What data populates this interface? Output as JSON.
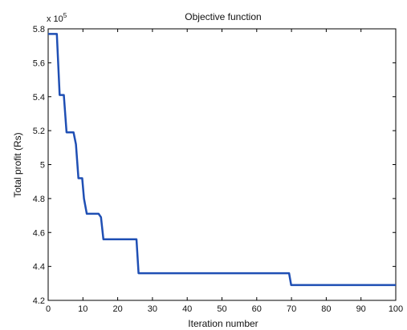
{
  "chart_data": {
    "type": "line",
    "title": "Objective function",
    "xlabel": "Iteration number",
    "ylabel": "Total profit (Rs)",
    "y_multiplier_base": "x 10",
    "y_multiplier_exp": "5",
    "xlim": [
      0,
      100
    ],
    "ylim": [
      4.2,
      5.8
    ],
    "xticks": [
      0,
      10,
      20,
      30,
      40,
      50,
      60,
      70,
      80,
      90,
      100
    ],
    "yticks": [
      4.2,
      4.4,
      4.6,
      4.8,
      5.0,
      5.2,
      5.4,
      5.6,
      5.8
    ],
    "ytick_labels": [
      "4.2",
      "4.4",
      "4.6",
      "4.8",
      "5",
      "5.2",
      "5.4",
      "5.6",
      "5.8"
    ],
    "grid": false,
    "line_color": "#1f4fb4",
    "series": [
      {
        "x": [
          0,
          2.5,
          3.3,
          4.5,
          5.3,
          7.3,
          8.0,
          8.7,
          9.8,
          10.3,
          11.1,
          14.5,
          15.2,
          15.9,
          25.4,
          26.0,
          69.3,
          69.9,
          100
        ],
        "y": [
          5.77,
          5.77,
          5.41,
          5.41,
          5.19,
          5.19,
          5.12,
          4.92,
          4.92,
          4.8,
          4.71,
          4.71,
          4.69,
          4.56,
          4.56,
          4.36,
          4.36,
          4.29,
          4.29
        ]
      }
    ]
  }
}
